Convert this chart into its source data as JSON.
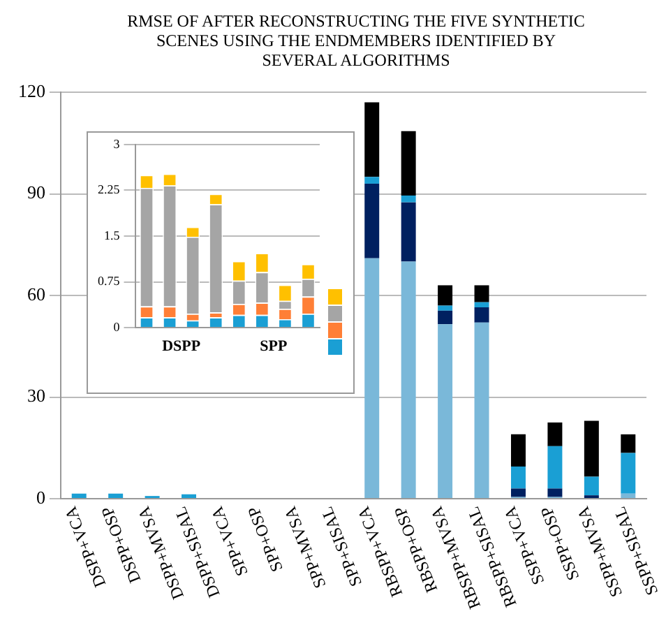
{
  "chart_data": [
    {
      "type": "bar",
      "title": "RMSE OF AFTER RECONSTRUCTING THE FIVE SYNTHETIC SCENES USING THE ENDMEMBERS IDENTIFIED BY SEVERAL ALGORITHMS",
      "categories": [
        "DSPP+VCA",
        "DSPP+OSP",
        "DSPP+MVSA",
        "DSPP+SISAL",
        "SPP+VCA",
        "SPP+OSP",
        "SPP+MVSA",
        "SPP+SISAL",
        "RBSPP+VCA",
        "RBSPP+OSP",
        "RBSPP+MVSA",
        "RBSPP+SISAL",
        "SSPP+VCA",
        "SSPP+OSP",
        "SSPP+MVSA",
        "SSPP+SISAL"
      ],
      "stacked": true,
      "grid": "y",
      "ylim": [
        0,
        120
      ],
      "yticks": [
        0,
        30,
        60,
        90,
        120
      ],
      "series": [
        {
          "color": "#7ab8d9",
          "values": [
            null,
            null,
            null,
            null,
            null,
            null,
            null,
            null,
            71,
            70,
            51.5,
            52,
            0.5,
            0.5,
            null,
            1.5
          ]
        },
        {
          "color": "#002060",
          "values": [
            null,
            null,
            null,
            null,
            null,
            null,
            null,
            null,
            22,
            17.5,
            4,
            4.5,
            2.5,
            2.5,
            1,
            null
          ]
        },
        {
          "color": "#1a9fd4",
          "values": [
            1.5,
            1.5,
            0.8,
            1.3,
            null,
            null,
            null,
            null,
            2,
            2,
            1.5,
            1.5,
            6.5,
            12.5,
            5.5,
            12
          ]
        },
        {
          "color": "#000000",
          "values": [
            null,
            null,
            null,
            null,
            null,
            null,
            null,
            null,
            22,
            19,
            6,
            5,
            9.5,
            7,
            16.5,
            5.5
          ]
        }
      ]
    },
    {
      "type": "bar",
      "categories": [
        null,
        null,
        null,
        null,
        null,
        null,
        null,
        null
      ],
      "stacked": true,
      "grid": "y",
      "ylim": [
        0,
        3
      ],
      "yticks": [
        0,
        0.75,
        1.5,
        2.25,
        3
      ],
      "annotations": [
        "DSPP",
        "SPP"
      ],
      "series": [
        {
          "color": "#1a9fd4",
          "values": [
            0.17,
            0.17,
            0.12,
            0.17,
            0.21,
            0.21,
            0.14,
            0.23
          ]
        },
        {
          "color": "#ff7f36",
          "values": [
            0.18,
            0.18,
            0.11,
            0.08,
            0.18,
            0.2,
            0.17,
            0.28
          ]
        },
        {
          "color": "#a5a5a5",
          "values": [
            1.94,
            1.98,
            1.26,
            1.77,
            0.38,
            0.5,
            0.13,
            0.29
          ]
        },
        {
          "color": "#ffc000",
          "values": [
            0.21,
            0.19,
            0.16,
            0.17,
            0.32,
            0.31,
            0.26,
            0.24
          ]
        }
      ]
    }
  ]
}
